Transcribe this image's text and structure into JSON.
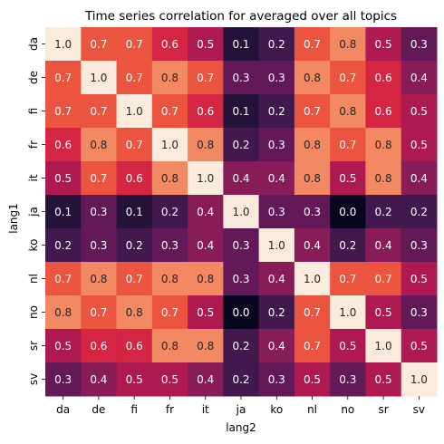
{
  "chart_data": {
    "type": "heatmap",
    "title": "Time series correlation for averaged over all topics",
    "xlabel": "lang2",
    "ylabel": "lang1",
    "x_categories": [
      "da",
      "de",
      "fi",
      "fr",
      "it",
      "ja",
      "ko",
      "nl",
      "no",
      "sr",
      "sv"
    ],
    "y_categories": [
      "da",
      "de",
      "fi",
      "fr",
      "it",
      "ja",
      "ko",
      "nl",
      "no",
      "sr",
      "sv"
    ],
    "values": [
      [
        1.0,
        0.7,
        0.7,
        0.6,
        0.5,
        0.1,
        0.2,
        0.7,
        0.8,
        0.5,
        0.3
      ],
      [
        0.7,
        1.0,
        0.7,
        0.8,
        0.7,
        0.3,
        0.3,
        0.8,
        0.7,
        0.6,
        0.4
      ],
      [
        0.7,
        0.7,
        1.0,
        0.7,
        0.6,
        0.1,
        0.2,
        0.7,
        0.8,
        0.6,
        0.5
      ],
      [
        0.6,
        0.8,
        0.7,
        1.0,
        0.8,
        0.2,
        0.3,
        0.8,
        0.7,
        0.8,
        0.5
      ],
      [
        0.5,
        0.7,
        0.6,
        0.8,
        1.0,
        0.4,
        0.4,
        0.8,
        0.5,
        0.8,
        0.4
      ],
      [
        0.1,
        0.3,
        0.1,
        0.2,
        0.4,
        1.0,
        0.3,
        0.3,
        -0.0,
        0.2,
        0.2
      ],
      [
        0.2,
        0.3,
        0.2,
        0.3,
        0.4,
        0.3,
        1.0,
        0.4,
        0.2,
        0.4,
        0.3
      ],
      [
        0.7,
        0.8,
        0.7,
        0.8,
        0.8,
        0.3,
        0.4,
        1.0,
        0.7,
        0.7,
        0.5
      ],
      [
        0.8,
        0.7,
        0.8,
        0.7,
        0.5,
        -0.0,
        0.2,
        0.7,
        1.0,
        0.5,
        0.3
      ],
      [
        0.5,
        0.6,
        0.6,
        0.8,
        0.8,
        0.2,
        0.4,
        0.7,
        0.5,
        1.0,
        0.5
      ],
      [
        0.3,
        0.4,
        0.5,
        0.5,
        0.4,
        0.2,
        0.3,
        0.5,
        0.3,
        0.5,
        1.0
      ]
    ],
    "colormap": "rocket",
    "value_range": [
      -0.02,
      1.0
    ],
    "annotations": true,
    "colorbar": false,
    "grid": false
  }
}
